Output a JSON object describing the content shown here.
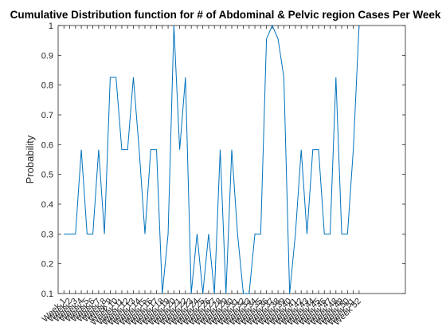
{
  "chart_data": {
    "type": "line",
    "title": "Cumulative Distribution function for # of Abdominal & Pelvic region Cases Per Week",
    "xlabel": "",
    "ylabel": "Probability",
    "ylim": [
      0.1,
      1
    ],
    "yticks": [
      "0.1",
      "0.2",
      "0.3",
      "0.4",
      "0.5",
      "0.6",
      "0.7",
      "0.8",
      "0.9",
      "1"
    ],
    "xlim": [
      0,
      60
    ],
    "grid": false,
    "categories": [
      "Week 1",
      "Week 2",
      "Week 3",
      "Week 4",
      "Week 5",
      "Week 6",
      "Week 7",
      "Week 8",
      "Week 9",
      "Week 10",
      "Week 11",
      "Week 12",
      "Week 13",
      "Week 14",
      "Week 15",
      "Week 16",
      "Week 17",
      "Week 18",
      "Week 19",
      "Week 20",
      "Week 21",
      "Week 22",
      "Week 23",
      "Week 24",
      "Week 25",
      "Week 26",
      "Week 27",
      "Week 28",
      "Week 29",
      "Week 30",
      "Week 31",
      "Week 32",
      "Week 33",
      "Week 34",
      "Week 35",
      "Week 36",
      "Week 37",
      "Week 38",
      "Week 39",
      "Week 40",
      "Week 41",
      "Week 42",
      "Week 43",
      "Week 44",
      "Week 45",
      "Week 46",
      "Week 47",
      "Week 48",
      "Week 49",
      "Week 50",
      "Week 51",
      "Week 52"
    ],
    "series": [
      {
        "color": "#0072bd",
        "values": [
          0.3,
          0.3,
          0.3,
          0.583,
          0.3,
          0.3,
          0.583,
          0.3,
          0.826,
          0.826,
          0.583,
          0.583,
          0.826,
          0.583,
          0.3,
          0.583,
          0.583,
          0.1,
          0.3,
          1,
          0.583,
          0.826,
          0.1,
          0.3,
          0.1,
          0.3,
          0.1,
          0.583,
          0.1,
          0.583,
          0.3,
          0.1,
          0.1,
          0.3,
          0.3,
          0.955,
          1,
          0.955,
          0.826,
          0.1,
          0.3,
          0.583,
          0.3,
          0.583,
          0.583,
          0.3,
          0.3,
          0.826,
          0.3,
          0.3,
          0.583,
          1
        ]
      }
    ]
  }
}
